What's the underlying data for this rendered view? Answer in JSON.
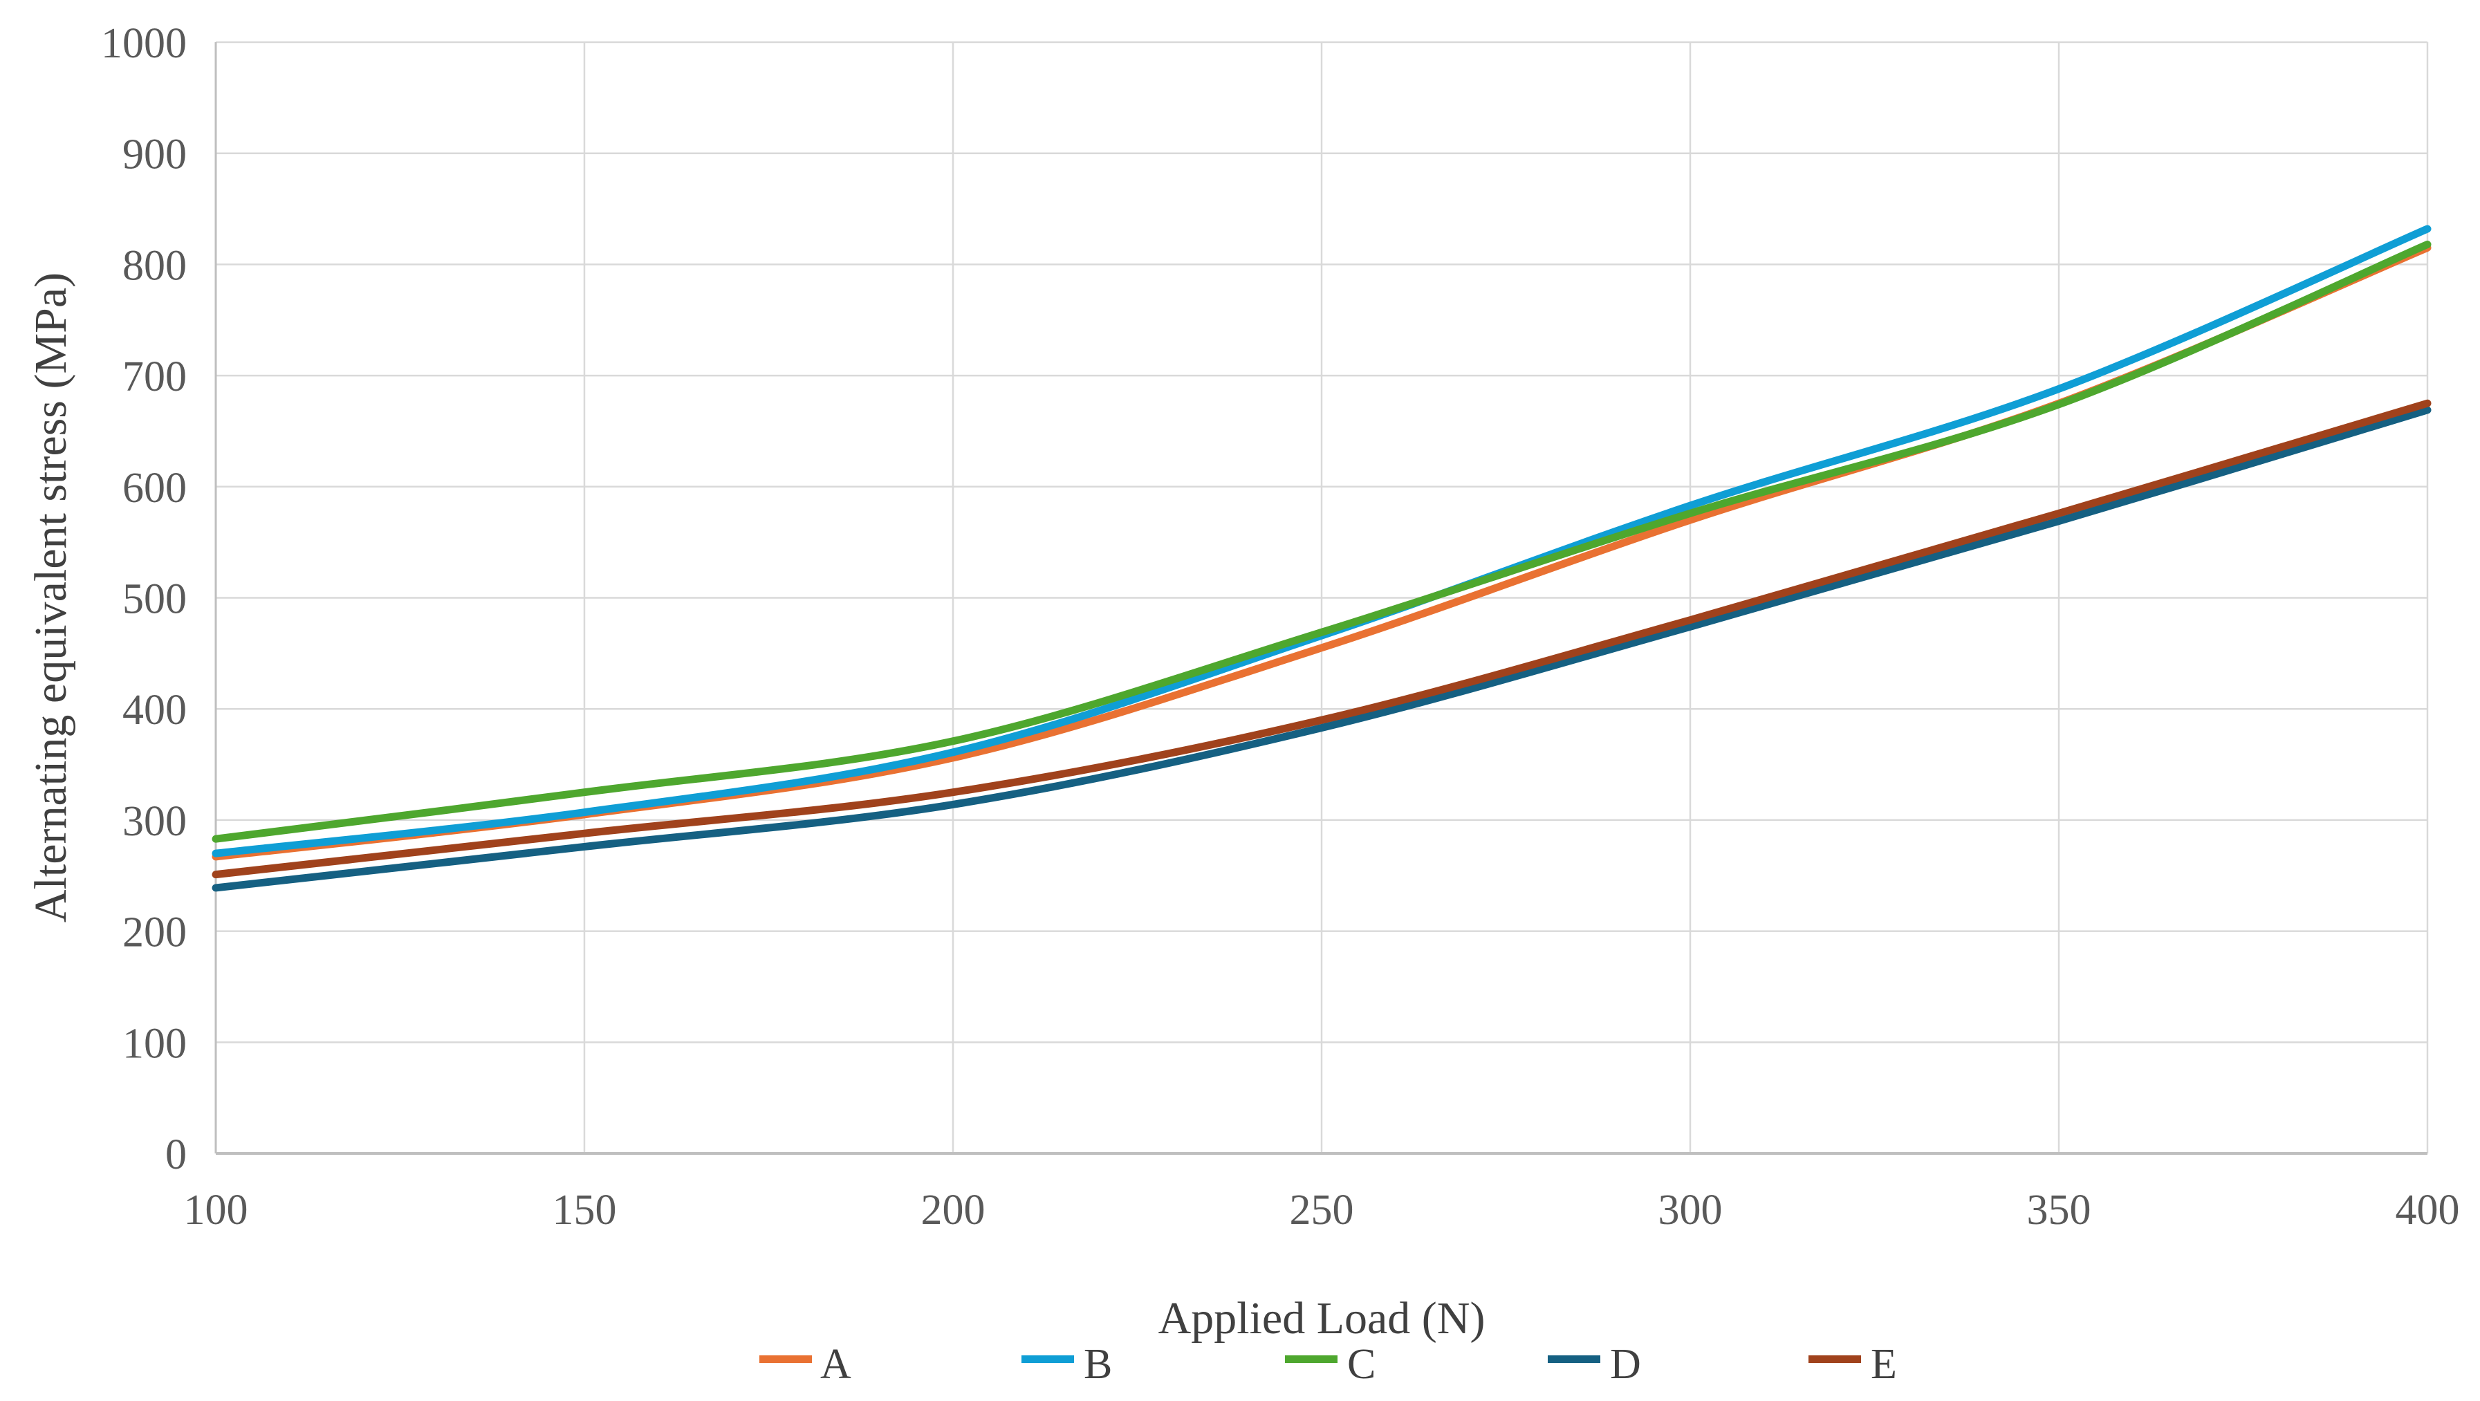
{
  "chart_data": {
    "type": "line",
    "title": "",
    "xlabel": "Applied Load (N)",
    "ylabel": "Alternating equivalent stress (MPa)",
    "x": [
      100,
      150,
      200,
      250,
      300,
      350,
      400
    ],
    "series": [
      {
        "name": "A",
        "color": "#E97132",
        "values": [
          267,
          305,
          356,
          455,
          570,
          675,
          815
        ]
      },
      {
        "name": "B",
        "color": "#0F9ED5",
        "values": [
          270,
          307,
          361,
          466,
          583,
          688,
          832
        ]
      },
      {
        "name": "C",
        "color": "#4EA72E",
        "values": [
          283,
          325,
          371,
          469,
          576,
          674,
          818
        ]
      },
      {
        "name": "D",
        "color": "#156082",
        "values": [
          239,
          276,
          314,
          383,
          474,
          569,
          669
        ]
      },
      {
        "name": "E",
        "color": "#A0421C",
        "values": [
          251,
          288,
          325,
          390,
          480,
          576,
          675
        ]
      }
    ],
    "xlim": [
      100,
      400
    ],
    "ylim": [
      0,
      1000
    ],
    "x_ticks": [
      100,
      150,
      200,
      250,
      300,
      350,
      400
    ],
    "y_ticks": [
      0,
      100,
      200,
      300,
      400,
      500,
      600,
      700,
      800,
      900,
      1000
    ],
    "x_tick_labels": [
      "100",
      "150",
      "200",
      "250",
      "300",
      "350",
      "400"
    ],
    "y_tick_labels": [
      "0",
      "100",
      "200",
      "300",
      "400",
      "500",
      "600",
      "700",
      "800",
      "900",
      "1000"
    ],
    "grid": true,
    "legend_position": "bottom",
    "colors": {
      "grid": "#D9D9D9",
      "axis": "#BFBFBF",
      "tick_label": "#595959",
      "axis_title": "#404040",
      "legend_text": "#404040",
      "background": "#FFFFFF"
    }
  }
}
